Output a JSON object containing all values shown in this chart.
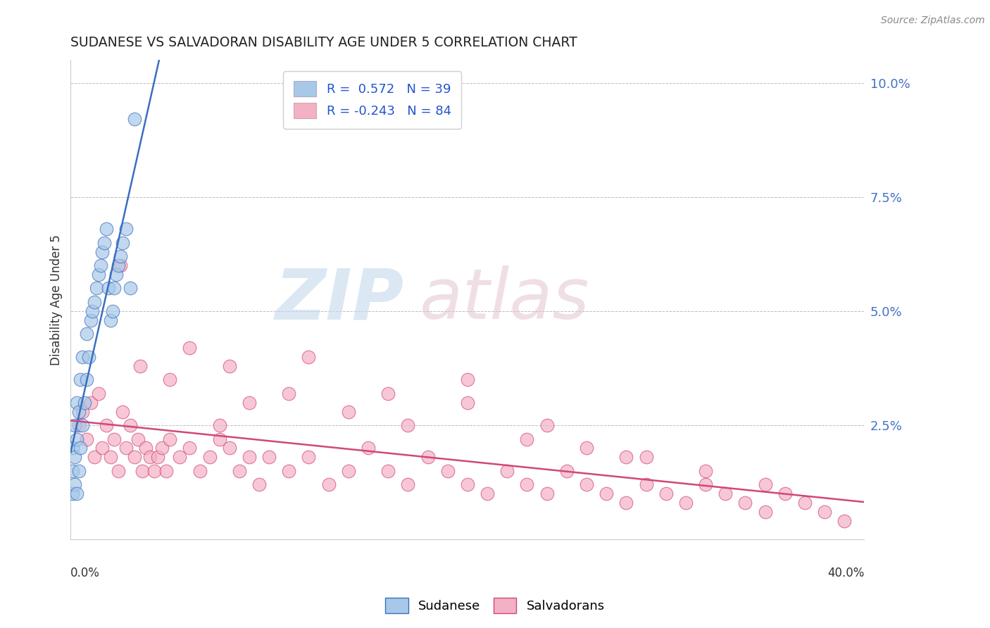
{
  "title": "SUDANESE VS SALVADORAN DISABILITY AGE UNDER 5 CORRELATION CHART",
  "source": "Source: ZipAtlas.com",
  "ylabel": "Disability Age Under 5",
  "legend_label_blue": "Sudanese",
  "legend_label_pink": "Salvadorans",
  "blue_R": 0.572,
  "blue_N": 39,
  "pink_R": -0.243,
  "pink_N": 84,
  "blue_color": "#A8C8E8",
  "pink_color": "#F4B0C4",
  "blue_line_color": "#3A6FC0",
  "pink_line_color": "#D04878",
  "xlim": [
    0.0,
    0.4
  ],
  "ylim": [
    0.0,
    0.105
  ],
  "ytick_values": [
    0.0,
    0.025,
    0.05,
    0.075,
    0.1
  ],
  "ytick_labels": [
    "",
    "2.5%",
    "5.0%",
    "7.5%",
    "10.0%"
  ],
  "blue_scatter_x": [
    0.001,
    0.001,
    0.001,
    0.002,
    0.002,
    0.002,
    0.003,
    0.003,
    0.003,
    0.004,
    0.004,
    0.005,
    0.005,
    0.006,
    0.006,
    0.007,
    0.008,
    0.008,
    0.009,
    0.01,
    0.011,
    0.012,
    0.013,
    0.014,
    0.015,
    0.016,
    0.017,
    0.018,
    0.019,
    0.02,
    0.021,
    0.022,
    0.023,
    0.024,
    0.025,
    0.026,
    0.028,
    0.03,
    0.032
  ],
  "blue_scatter_y": [
    0.01,
    0.015,
    0.02,
    0.012,
    0.018,
    0.025,
    0.01,
    0.022,
    0.03,
    0.015,
    0.028,
    0.02,
    0.035,
    0.025,
    0.04,
    0.03,
    0.035,
    0.045,
    0.04,
    0.048,
    0.05,
    0.052,
    0.055,
    0.058,
    0.06,
    0.063,
    0.065,
    0.068,
    0.055,
    0.048,
    0.05,
    0.055,
    0.058,
    0.06,
    0.062,
    0.065,
    0.068,
    0.055,
    0.092
  ],
  "pink_scatter_x": [
    0.004,
    0.006,
    0.008,
    0.01,
    0.012,
    0.014,
    0.016,
    0.018,
    0.02,
    0.022,
    0.024,
    0.026,
    0.028,
    0.03,
    0.032,
    0.034,
    0.036,
    0.038,
    0.04,
    0.042,
    0.044,
    0.046,
    0.048,
    0.05,
    0.055,
    0.06,
    0.065,
    0.07,
    0.075,
    0.08,
    0.085,
    0.09,
    0.095,
    0.1,
    0.11,
    0.12,
    0.13,
    0.14,
    0.15,
    0.16,
    0.17,
    0.18,
    0.19,
    0.2,
    0.21,
    0.22,
    0.23,
    0.24,
    0.25,
    0.26,
    0.27,
    0.28,
    0.29,
    0.3,
    0.31,
    0.32,
    0.33,
    0.34,
    0.35,
    0.36,
    0.37,
    0.38,
    0.39,
    0.05,
    0.08,
    0.11,
    0.14,
    0.17,
    0.2,
    0.23,
    0.26,
    0.29,
    0.32,
    0.35,
    0.16,
    0.2,
    0.24,
    0.28,
    0.06,
    0.09,
    0.12,
    0.075,
    0.025,
    0.035
  ],
  "pink_scatter_y": [
    0.025,
    0.028,
    0.022,
    0.03,
    0.018,
    0.032,
    0.02,
    0.025,
    0.018,
    0.022,
    0.015,
    0.028,
    0.02,
    0.025,
    0.018,
    0.022,
    0.015,
    0.02,
    0.018,
    0.015,
    0.018,
    0.02,
    0.015,
    0.022,
    0.018,
    0.02,
    0.015,
    0.018,
    0.022,
    0.02,
    0.015,
    0.018,
    0.012,
    0.018,
    0.015,
    0.018,
    0.012,
    0.015,
    0.02,
    0.015,
    0.012,
    0.018,
    0.015,
    0.012,
    0.01,
    0.015,
    0.012,
    0.01,
    0.015,
    0.012,
    0.01,
    0.008,
    0.012,
    0.01,
    0.008,
    0.012,
    0.01,
    0.008,
    0.006,
    0.01,
    0.008,
    0.006,
    0.004,
    0.035,
    0.038,
    0.032,
    0.028,
    0.025,
    0.03,
    0.022,
    0.02,
    0.018,
    0.015,
    0.012,
    0.032,
    0.035,
    0.025,
    0.018,
    0.042,
    0.03,
    0.04,
    0.025,
    0.06,
    0.038
  ]
}
